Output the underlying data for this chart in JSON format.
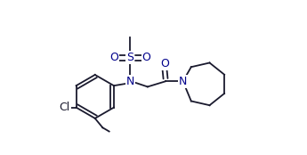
{
  "bg_color": "#ffffff",
  "line_color": "#1a1a2e",
  "atom_color": "#00008B",
  "figsize": [
    3.45,
    1.74
  ],
  "dpi": 100,
  "xlim": [
    -0.15,
    3.6
  ],
  "ylim": [
    -1.0,
    1.8
  ]
}
